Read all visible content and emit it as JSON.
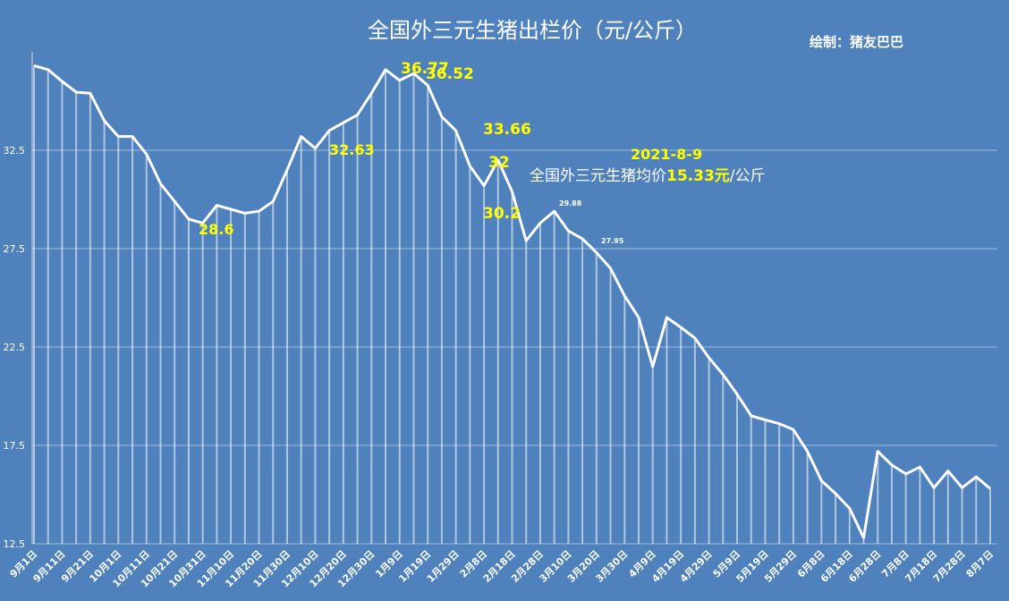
{
  "chart_data": {
    "type": "line",
    "title": "全国外三元生猪出栏价（元/公斤）",
    "credit": "绘制：猪友巴巴",
    "categories": [
      "9月1日",
      null,
      "9月11日",
      null,
      "9月21日",
      null,
      "10月1日",
      null,
      "10月11日",
      null,
      "10月21日",
      null,
      "10月31日",
      null,
      "11月10日",
      null,
      "11月20日",
      null,
      "11月30日",
      null,
      "12月10日",
      null,
      "12月20日",
      null,
      "12月30日",
      null,
      "1月9日",
      null,
      "1月19日",
      null,
      "1月29日",
      null,
      "2月8日",
      null,
      "2月18日",
      null,
      "2月28日",
      null,
      "3月10日",
      null,
      "3月20日",
      null,
      "3月30日",
      null,
      "4月9日",
      null,
      "4月19日",
      null,
      "4月29日",
      null,
      "5月9日",
      null,
      "5月19日",
      null,
      "5月29日",
      null,
      "6月8日",
      null,
      "6月18日",
      null,
      "6月28日",
      null,
      "7月8日",
      null,
      "7月18日",
      null,
      "7月28日",
      null,
      "8月7日"
    ],
    "series": [
      {
        "name": "全国外三元生猪出栏价",
        "color": "#ffffff",
        "values": [
          36.8,
          36.6,
          36.0,
          35.45,
          35.4,
          34.0,
          33.2,
          33.2,
          32.3,
          30.8,
          29.9,
          29.0,
          28.8,
          29.7,
          29.5,
          29.3,
          29.4,
          29.9,
          31.5,
          33.2,
          32.6,
          33.5,
          33.9,
          34.3,
          35.4,
          36.6,
          36.05,
          36.4,
          35.8,
          34.2,
          33.5,
          31.7,
          30.7,
          32.0,
          30.4,
          27.9,
          28.8,
          29.4,
          28.4,
          28.0,
          27.3,
          26.5,
          25.1,
          24.0,
          21.5,
          24.0,
          23.5,
          22.95,
          21.95,
          21.1,
          20.1,
          19.0,
          18.8,
          18.6,
          18.3,
          17.2,
          15.7,
          15.05,
          14.3,
          12.8,
          17.2,
          16.5,
          16.05,
          16.4,
          15.35,
          16.2,
          15.35,
          15.9,
          15.3
        ]
      }
    ],
    "ylim": [
      12.5,
      37.5
    ],
    "yticks": [
      12.5,
      17.5,
      22.5,
      27.5,
      32.5
    ],
    "grid": true,
    "annotations": [
      {
        "text": "36.77",
        "color": "#ffff00"
      },
      {
        "text": "36.52",
        "color": "#ffff00"
      },
      {
        "text": "33.66",
        "color": "#ffff00"
      },
      {
        "text": "32.63",
        "color": "#ffff00"
      },
      {
        "text": "32",
        "color": "#ffff00"
      },
      {
        "text": "30.2",
        "color": "#ffff00"
      },
      {
        "text": "28.6",
        "color": "#ffff00"
      },
      {
        "text": "29.88",
        "color": "#ffffff"
      },
      {
        "text": "27.95",
        "color": "#ffffff"
      },
      {
        "text": "2021-8-9",
        "color": "#ffff00"
      }
    ],
    "average_note": [
      {
        "text": "全国外三元生猪均价",
        "color": "#ffffff"
      },
      {
        "text": "15.33元",
        "color": "#ffff00"
      },
      {
        "text": "/公斤",
        "color": "#ffffff"
      }
    ]
  }
}
